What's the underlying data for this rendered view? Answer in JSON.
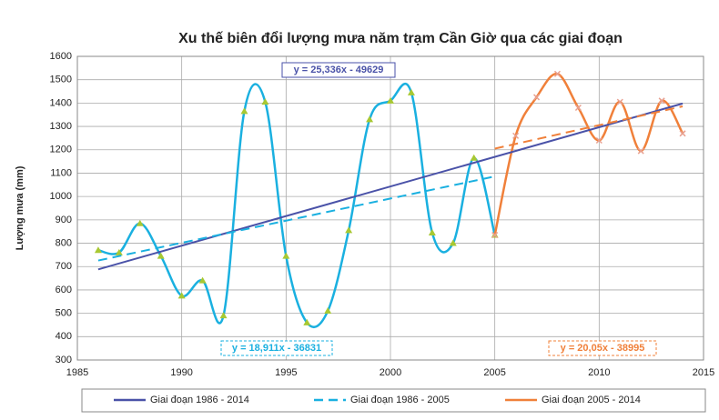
{
  "chart_data": {
    "type": "line",
    "title": "Xu thế biên đổi lượng mưa năm trạm Cần Giờ qua các giai đoạn",
    "y_label": "Lượng mưa (mm)",
    "xlim": [
      1985,
      2015
    ],
    "xticks": [
      1985,
      1990,
      1995,
      2000,
      2005,
      2010,
      2015
    ],
    "ylim": [
      300,
      1600
    ],
    "yticks": [
      300,
      400,
      500,
      600,
      700,
      800,
      900,
      1000,
      1100,
      1200,
      1300,
      1400,
      1500,
      1600
    ],
    "grid": true,
    "legend": "bottom",
    "series": [
      {
        "color": "#1ab0e0",
        "smooth": true,
        "marker": "triangle",
        "marker_color": "#a8c832",
        "x": [
          1986,
          1987,
          1988,
          1989,
          1990,
          1991,
          1992,
          1993,
          1994,
          1995,
          1996,
          1997,
          1998,
          1999,
          2000,
          2001,
          2002,
          2003,
          2004,
          2005
        ],
        "values": [
          770,
          760,
          885,
          745,
          575,
          640,
          490,
          1365,
          1405,
          745,
          460,
          510,
          855,
          1330,
          1410,
          1445,
          845,
          800,
          1165,
          835
        ]
      },
      {
        "name": "Giai đoạn 2005 - 2014",
        "color": "#f0803a",
        "smooth": true,
        "marker": "x",
        "marker_color": "#e8a090",
        "x": [
          2005,
          2006,
          2007,
          2008,
          2009,
          2010,
          2011,
          2012,
          2013,
          2014
        ],
        "values": [
          835,
          1260,
          1425,
          1525,
          1380,
          1240,
          1405,
          1195,
          1410,
          1270
        ]
      },
      {
        "name": "Giai đoạn 1986 - 2014",
        "color": "#4a52a8",
        "dash": false,
        "equation": "y = 25,336x - 49629",
        "x": [
          1986,
          2014
        ],
        "values": [
          688,
          1398
        ]
      },
      {
        "name": "Giai đoạn 1986 - 2005",
        "color": "#1ab0e0",
        "dash": true,
        "equation": "y = 18,911x - 36831",
        "x": [
          1986,
          2005
        ],
        "values": [
          726,
          1086
        ]
      },
      {
        "color": "#f0803a",
        "dash": true,
        "equation": "y = 20,05x - 38995",
        "x": [
          2005,
          2014
        ],
        "values": [
          1205,
          1386
        ]
      }
    ]
  }
}
